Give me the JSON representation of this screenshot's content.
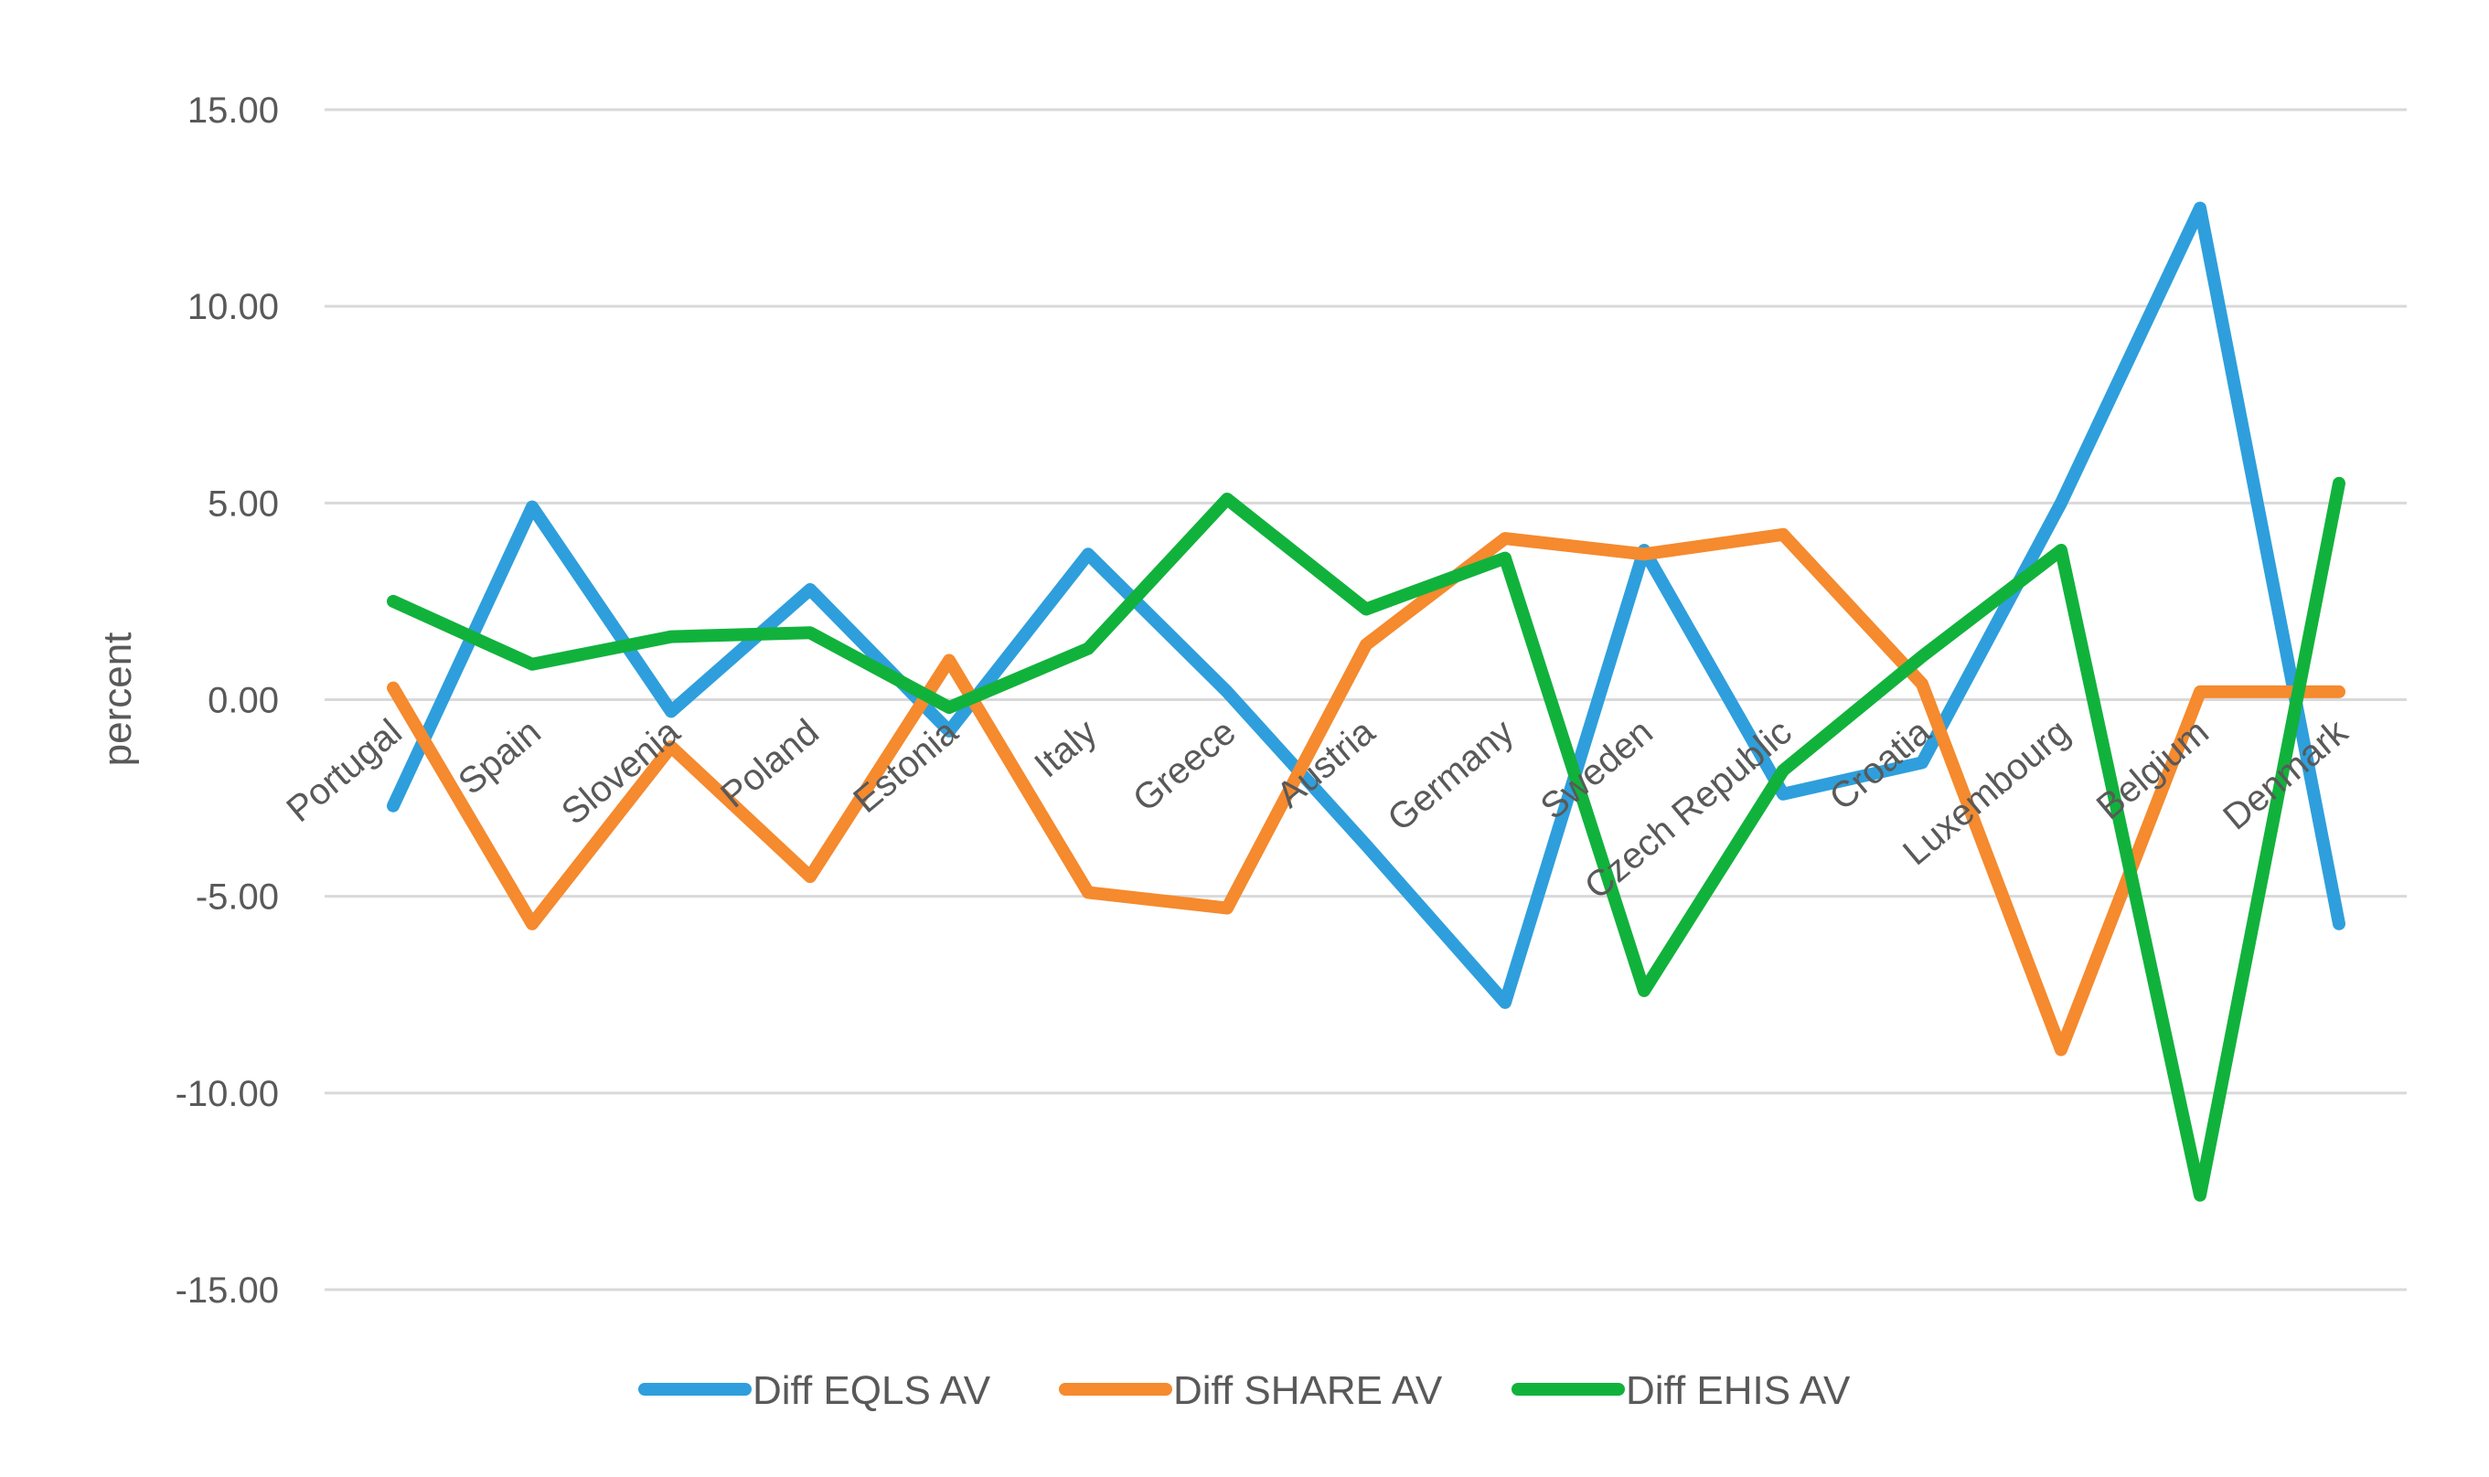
{
  "chart_data": {
    "type": "line",
    "title": "",
    "xlabel": "",
    "ylabel": "percent",
    "ylim": [
      -15,
      15
    ],
    "yticks": [
      15,
      10,
      5,
      0,
      -5,
      -10,
      -15
    ],
    "ytick_labels": [
      "15.00",
      "10.00",
      "5.00",
      "0.00",
      "-5.00",
      "-10.00",
      "-15.00"
    ],
    "grid": true,
    "legend_position": "bottom",
    "categories": [
      "Portugal",
      "Spain",
      "Slovenia",
      "Poland",
      "Estonia",
      "Italy",
      "Greece",
      "Austria",
      "Germany",
      "Sweden",
      "Czech Republic",
      "Croatia",
      "Luxembourg",
      "Belgium",
      "Denmark"
    ],
    "series": [
      {
        "name": "Diff EQLS AV",
        "color": "#2e9fdc",
        "values": [
          -2.7,
          4.9,
          -0.3,
          2.8,
          -0.8,
          3.7,
          0.2,
          -3.7,
          -7.7,
          3.8,
          -2.4,
          -1.6,
          5.0,
          12.5,
          -5.7
        ]
      },
      {
        "name": "Diff SHARE AV",
        "color": "#f58a2e",
        "values": [
          0.3,
          -5.7,
          -1.2,
          -4.5,
          1.0,
          -4.9,
          -5.3,
          1.4,
          4.1,
          3.7,
          4.2,
          0.4,
          -8.9,
          0.2,
          0.2
        ]
      },
      {
        "name": "Diff EHIS AV",
        "color": "#11b23c",
        "values": [
          2.5,
          0.9,
          1.6,
          1.7,
          -0.2,
          1.3,
          5.1,
          2.3,
          3.6,
          -7.4,
          -1.8,
          1.1,
          3.8,
          -12.6,
          5.5
        ]
      }
    ]
  }
}
